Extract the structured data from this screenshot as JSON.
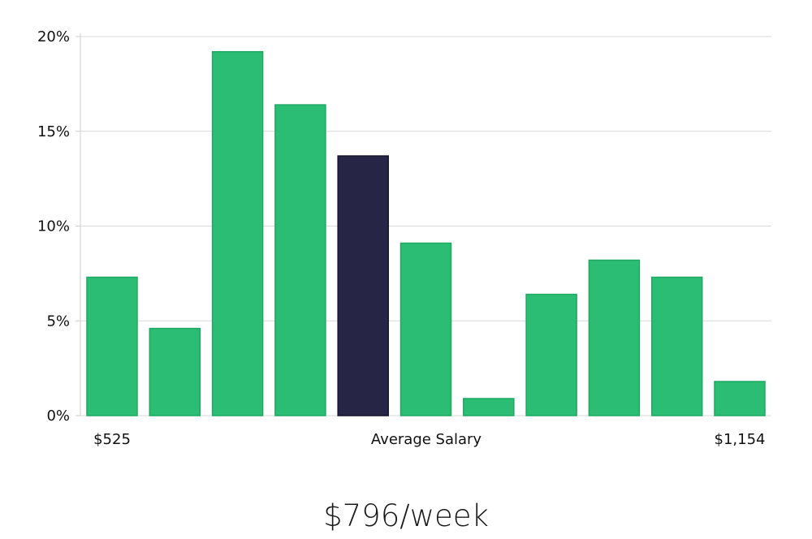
{
  "chart_data": {
    "type": "bar",
    "values": [
      7.3,
      4.6,
      19.2,
      16.4,
      13.7,
      9.1,
      0.9,
      6.4,
      8.2,
      7.3,
      1.8
    ],
    "highlight_index": 4,
    "ylim": [
      0,
      20
    ],
    "yticks": [
      0,
      5,
      10,
      15,
      20
    ],
    "ytick_labels": [
      "0%",
      "5%",
      "10%",
      "15%",
      "20%"
    ],
    "x_labels": {
      "min": "$525",
      "center": "Average Salary",
      "max": "$1,154"
    },
    "grid": true,
    "colors": {
      "bar": "#2bbd74",
      "bar_edge": "#20a862",
      "highlight": "#272545",
      "highlight_edge": "#14132b",
      "grid": "#d9d9d9",
      "axis": "#cccccc"
    }
  },
  "headline": "$796/week"
}
